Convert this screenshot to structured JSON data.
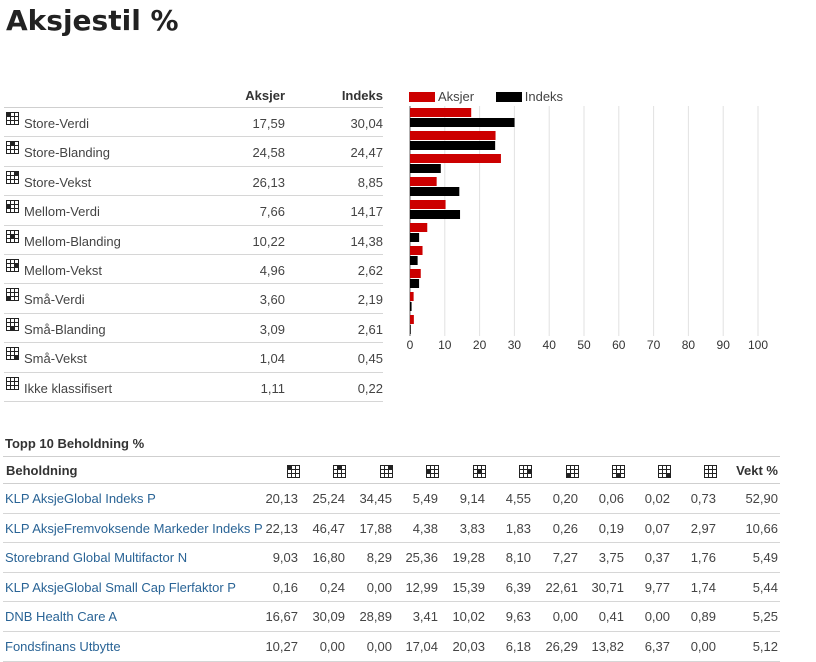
{
  "page": {
    "title": "Aksjestil %"
  },
  "style_table": {
    "col_aksjer": "Aksjer",
    "col_indeks": "Indeks",
    "rows": [
      {
        "label": "Store-Verdi",
        "aksjer": "17,59",
        "indeks": "30,04",
        "icon": "style-box-large-value"
      },
      {
        "label": "Store-Blanding",
        "aksjer": "24,58",
        "indeks": "24,47",
        "icon": "style-box-large-blend"
      },
      {
        "label": "Store-Vekst",
        "aksjer": "26,13",
        "indeks": "8,85",
        "icon": "style-box-large-growth"
      },
      {
        "label": "Mellom-Verdi",
        "aksjer": "7,66",
        "indeks": "14,17",
        "icon": "style-box-mid-value"
      },
      {
        "label": "Mellom-Blanding",
        "aksjer": "10,22",
        "indeks": "14,38",
        "icon": "style-box-mid-blend"
      },
      {
        "label": "Mellom-Vekst",
        "aksjer": "4,96",
        "indeks": "2,62",
        "icon": "style-box-mid-growth"
      },
      {
        "label": "Små-Verdi",
        "aksjer": "3,60",
        "indeks": "2,19",
        "icon": "style-box-small-value"
      },
      {
        "label": "Små-Blanding",
        "aksjer": "3,09",
        "indeks": "2,61",
        "icon": "style-box-small-blend"
      },
      {
        "label": "Små-Vekst",
        "aksjer": "1,04",
        "indeks": "0,45",
        "icon": "style-box-small-growth"
      },
      {
        "label": "Ikke klassifisert",
        "aksjer": "1,11",
        "indeks": "0,22",
        "icon": "style-box-empty"
      }
    ]
  },
  "chart_data": {
    "type": "bar",
    "orientation": "horizontal",
    "categories": [
      "Store-Verdi",
      "Store-Blanding",
      "Store-Vekst",
      "Mellom-Verdi",
      "Mellom-Blanding",
      "Mellom-Vekst",
      "Små-Verdi",
      "Små-Blanding",
      "Små-Vekst",
      "Ikke klassifisert"
    ],
    "series": [
      {
        "name": "Aksjer",
        "color": "#cc0000",
        "values": [
          17.59,
          24.58,
          26.13,
          7.66,
          10.22,
          4.96,
          3.6,
          3.09,
          1.04,
          1.11
        ]
      },
      {
        "name": "Indeks",
        "color": "#000000",
        "values": [
          30.04,
          24.47,
          8.85,
          14.17,
          14.38,
          2.62,
          2.19,
          2.61,
          0.45,
          0.22
        ]
      }
    ],
    "xlim": [
      0,
      100
    ],
    "xticks": [
      0,
      10,
      20,
      30,
      40,
      50,
      60,
      70,
      80,
      90,
      100
    ],
    "grid": true,
    "legend_position": "top-left",
    "title": "",
    "xlabel": "",
    "ylabel": ""
  },
  "holdings": {
    "title": "Topp 10 Beholdning %",
    "col_name": "Beholdning",
    "col_weight": "Vekt %",
    "style_icons": [
      "style-box-large-value",
      "style-box-large-blend",
      "style-box-large-growth",
      "style-box-mid-value",
      "style-box-mid-blend",
      "style-box-mid-growth",
      "style-box-small-value",
      "style-box-small-blend",
      "style-box-small-growth",
      "style-box-empty"
    ],
    "rows": [
      {
        "name": "KLP AksjeGlobal Indeks P",
        "values": [
          "20,13",
          "25,24",
          "34,45",
          "5,49",
          "9,14",
          "4,55",
          "0,20",
          "0,06",
          "0,02",
          "0,73"
        ],
        "weight": "52,90"
      },
      {
        "name": "KLP AksjeFremvoksende Markeder Indeks P",
        "values": [
          "22,13",
          "46,47",
          "17,88",
          "4,38",
          "3,83",
          "1,83",
          "0,26",
          "0,19",
          "0,07",
          "2,97"
        ],
        "weight": "10,66"
      },
      {
        "name": "Storebrand Global Multifactor N",
        "values": [
          "9,03",
          "16,80",
          "8,29",
          "25,36",
          "19,28",
          "8,10",
          "7,27",
          "3,75",
          "0,37",
          "1,76"
        ],
        "weight": "5,49"
      },
      {
        "name": "KLP AksjeGlobal Small Cap Flerfaktor P",
        "values": [
          "0,16",
          "0,24",
          "0,00",
          "12,99",
          "15,39",
          "6,39",
          "22,61",
          "30,71",
          "9,77",
          "1,74"
        ],
        "weight": "5,44"
      },
      {
        "name": "DNB Health Care A",
        "values": [
          "16,67",
          "30,09",
          "28,89",
          "3,41",
          "10,02",
          "9,63",
          "0,00",
          "0,41",
          "0,00",
          "0,89"
        ],
        "weight": "5,25"
      },
      {
        "name": "Fondsfinans Utbytte",
        "values": [
          "10,27",
          "0,00",
          "0,00",
          "17,04",
          "20,03",
          "6,18",
          "26,29",
          "13,82",
          "6,37",
          "0,00"
        ],
        "weight": "5,12"
      }
    ]
  }
}
